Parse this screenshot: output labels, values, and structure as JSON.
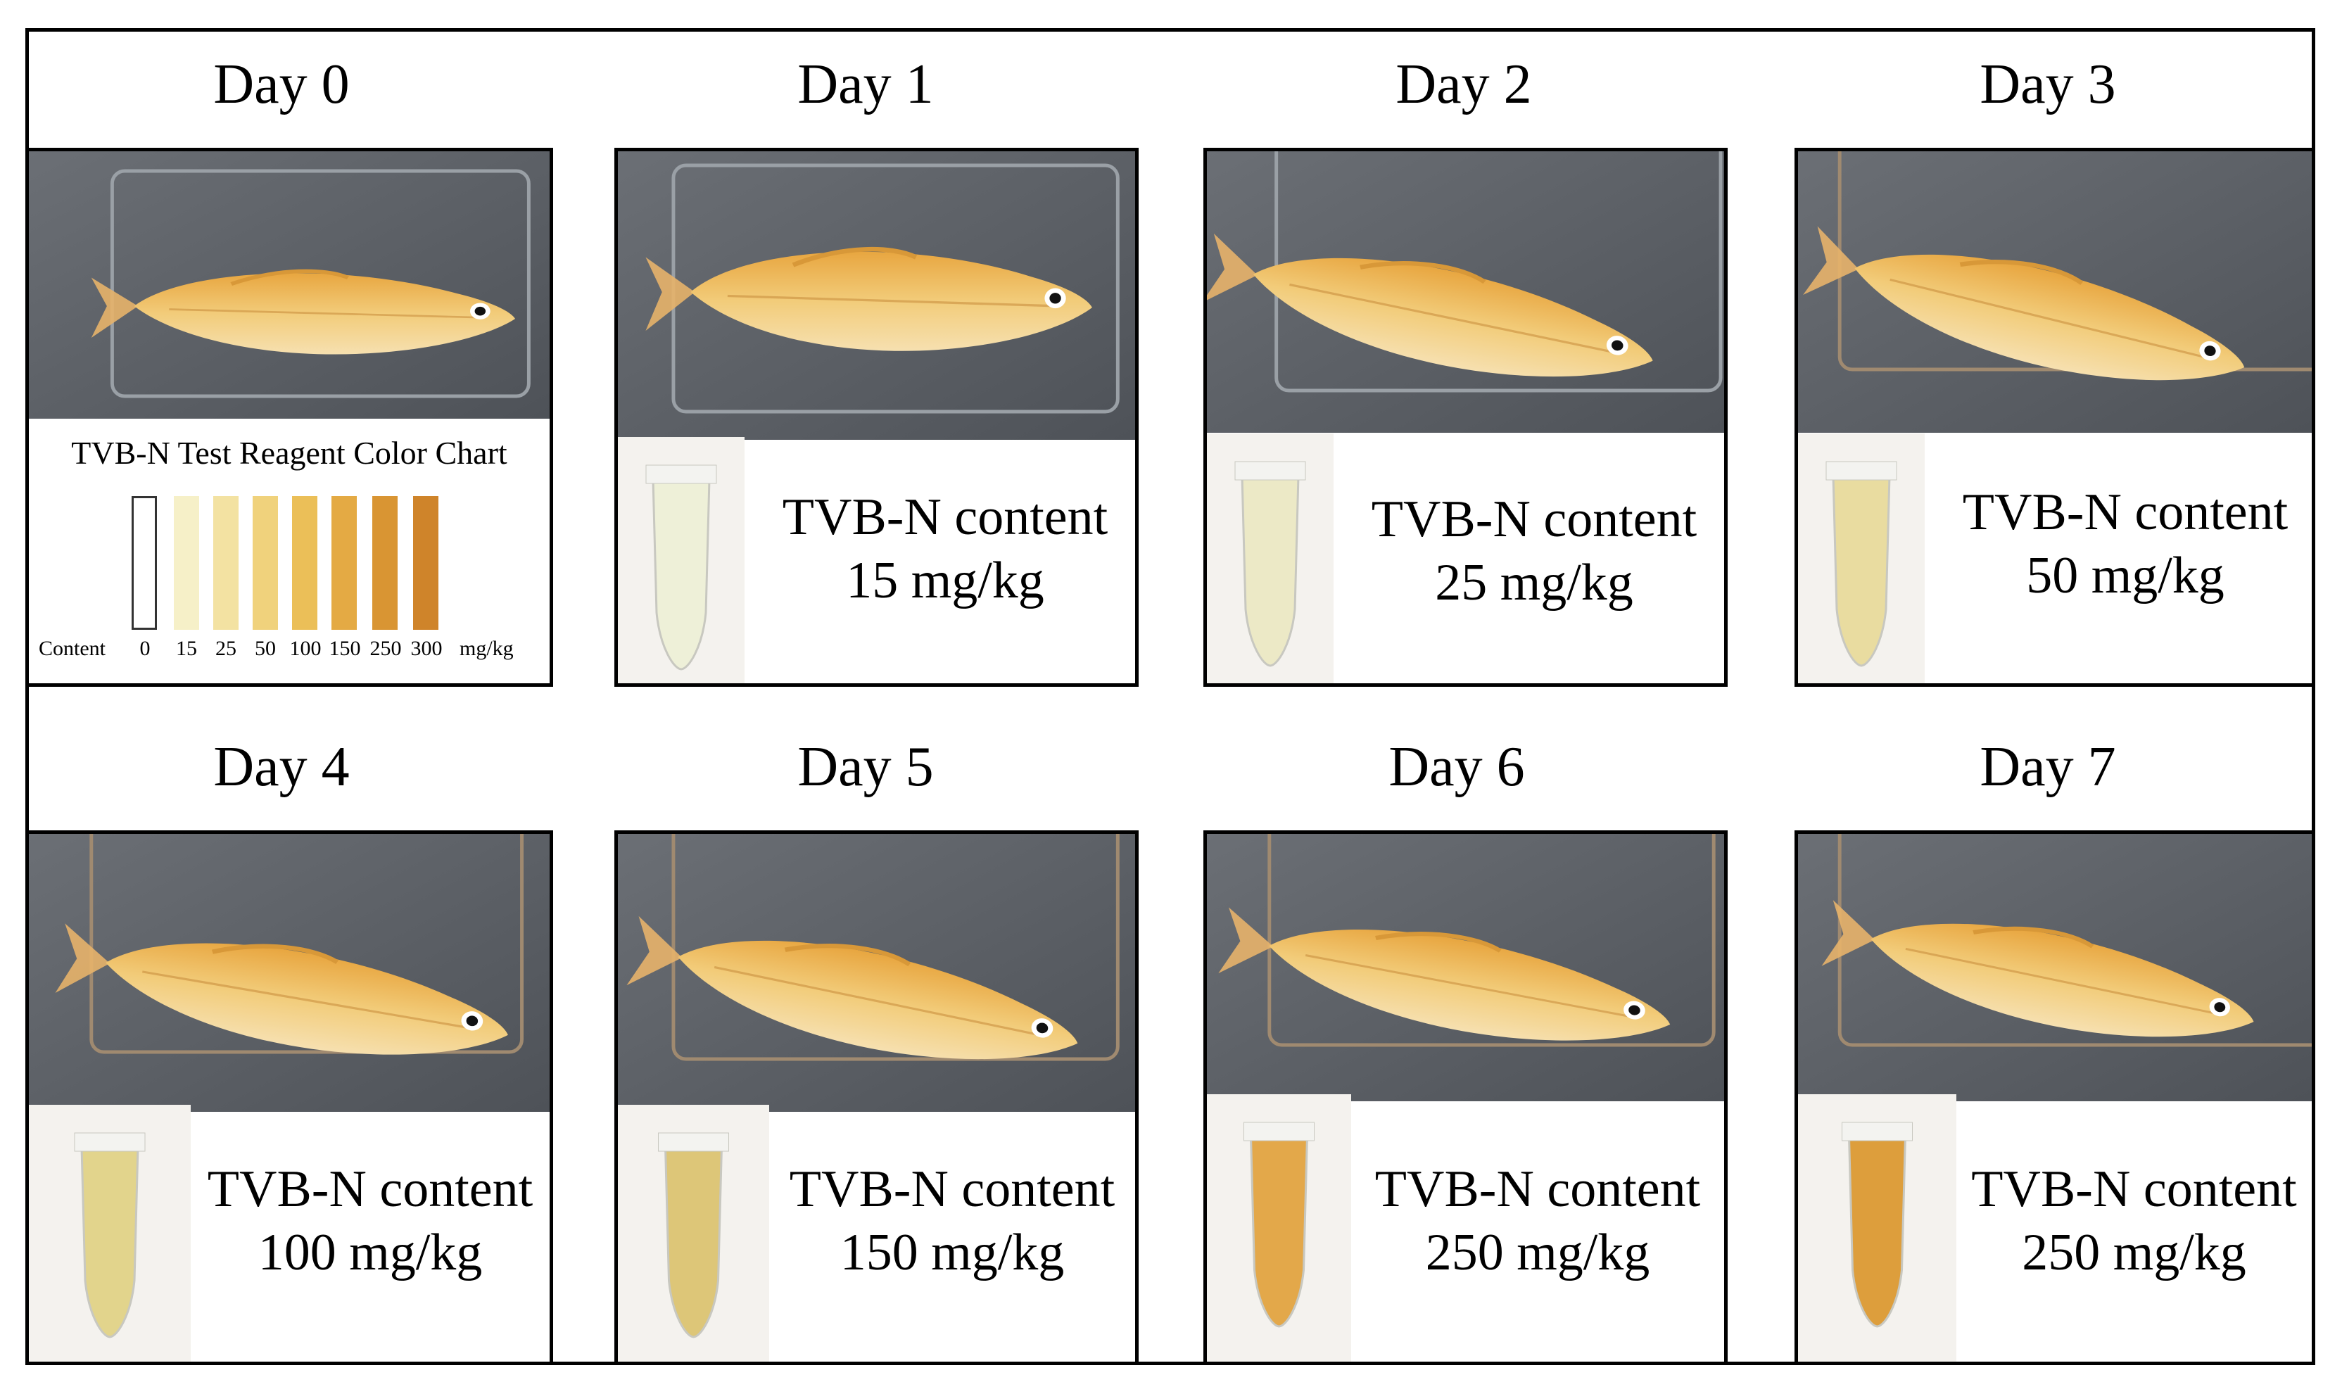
{
  "panels": [
    {
      "day": "Day 0",
      "type": "chart"
    },
    {
      "day": "Day 1",
      "label": "TVB-N content",
      "value": "15 mg/kg",
      "tube_color": "#eef0d8"
    },
    {
      "day": "Day 2",
      "label": "TVB-N content",
      "value": "25 mg/kg",
      "tube_color": "#ece9c6"
    },
    {
      "day": "Day 3",
      "label": "TVB-N content",
      "value": "50 mg/kg",
      "tube_color": "#e9dca0"
    },
    {
      "day": "Day 4",
      "label": "TVB-N content",
      "value": "100 mg/kg",
      "tube_color": "#e2d48c"
    },
    {
      "day": "Day 5",
      "label": "TVB-N content",
      "value": "150 mg/kg",
      "tube_color": "#ddc678"
    },
    {
      "day": "Day 6",
      "label": "TVB-N content",
      "value": "250 mg/kg",
      "tube_color": "#e3a84a"
    },
    {
      "day": "Day 7",
      "label": "TVB-N content",
      "value": "250 mg/kg",
      "tube_color": "#dd9e3c"
    }
  ],
  "color_chart": {
    "title": "TVB-N Test Reagent Color Chart",
    "content_label": "Content",
    "unit": "mg/kg",
    "levels": [
      "0",
      "15",
      "25",
      "50",
      "100",
      "150",
      "250",
      "300"
    ],
    "colors": [
      "#ffffff",
      "#f6f0c8",
      "#f3e2a2",
      "#f0d27c",
      "#ebbf58",
      "#e4aa44",
      "#d99533",
      "#cf842a"
    ]
  }
}
